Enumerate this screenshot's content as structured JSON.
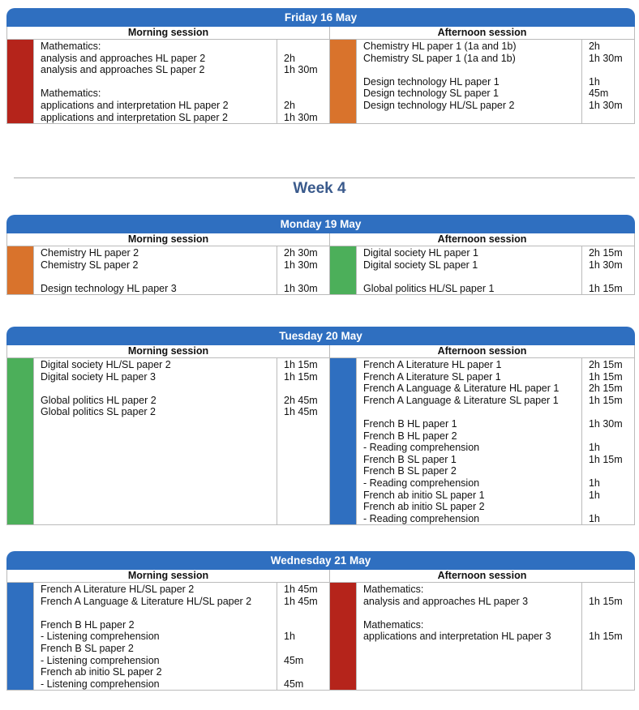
{
  "days": [
    {
      "title": "Friday 16 May",
      "sessions": [
        {
          "heading": "Morning session",
          "color": "#b5241b",
          "groups": [
            [
              {
                "subject": "Mathematics:"
              },
              {
                "subject": "analysis and approaches HL paper 2",
                "duration": "2h"
              },
              {
                "subject": "analysis and approaches SL paper 2",
                "duration": "1h 30m"
              }
            ],
            [
              {
                "subject": "Mathematics:"
              },
              {
                "subject": "applications and interpretation HL paper 2",
                "duration": "2h"
              },
              {
                "subject": "applications and interpretation SL paper 2",
                "duration": "1h 30m"
              }
            ]
          ]
        },
        {
          "heading": "Afternoon session",
          "color": "#d9732c",
          "groups": [
            [
              {
                "subject": "Chemistry HL paper 1 (1a and 1b)",
                "duration": "2h"
              },
              {
                "subject": "Chemistry SL paper 1 (1a and 1b)",
                "duration": "1h 30m"
              }
            ],
            [
              {
                "subject": "Design technology HL paper 1",
                "duration": "1h"
              },
              {
                "subject": "Design technology SL paper 1",
                "duration": "45m"
              },
              {
                "subject": "Design technology HL/SL paper 2",
                "duration": "1h 30m"
              }
            ]
          ]
        }
      ]
    },
    {
      "title": "Monday 19 May",
      "sessions": [
        {
          "heading": "Morning session",
          "color": "#d9732c",
          "groups": [
            [
              {
                "subject": "Chemistry HL paper 2",
                "duration": "2h 30m"
              },
              {
                "subject": "Chemistry SL paper 2",
                "duration": "1h 30m"
              }
            ],
            [
              {
                "subject": "Design technology HL paper 3",
                "duration": "1h 30m"
              }
            ]
          ]
        },
        {
          "heading": "Afternoon session",
          "color": "#4caf5a",
          "groups": [
            [
              {
                "subject": "Digital society HL paper 1",
                "duration": "2h 15m"
              },
              {
                "subject": "Digital society SL paper 1",
                "duration": "1h 30m"
              }
            ],
            [
              {
                "subject": "Global politics HL/SL paper 1",
                "duration": "1h 15m"
              }
            ]
          ]
        }
      ]
    },
    {
      "title": "Tuesday 20 May",
      "sessions": [
        {
          "heading": "Morning session",
          "color": "#4caf5a",
          "groups": [
            [
              {
                "subject": "Digital society HL/SL paper 2",
                "duration": "1h 15m"
              },
              {
                "subject": "Digital society HL paper 3",
                "duration": "1h 15m"
              }
            ],
            [
              {
                "subject": "Global politics HL paper 2",
                "duration": "2h 45m"
              },
              {
                "subject": "Global politics SL paper 2",
                "duration": "1h 45m"
              }
            ]
          ]
        },
        {
          "heading": "Afternoon session",
          "color": "#2f6fc0",
          "groups": [
            [
              {
                "subject": "French A Literature HL paper 1",
                "duration": "2h 15m"
              },
              {
                "subject": "French A Literature SL paper 1",
                "duration": "1h 15m"
              },
              {
                "subject": "French A Language & Literature HL paper 1",
                "duration": "2h 15m"
              },
              {
                "subject": "French A Language & Literature SL paper 1",
                "duration": "1h 15m"
              }
            ],
            [
              {
                "subject": "French B HL paper 1",
                "duration": "1h 30m"
              },
              {
                "subject": "French B HL paper 2"
              },
              {
                "subject": "- Reading comprehension",
                "duration": "1h"
              },
              {
                "subject": "French B SL paper 1",
                "duration": "1h 15m"
              },
              {
                "subject": "French B SL paper 2"
              },
              {
                "subject": "- Reading comprehension",
                "duration": "1h"
              },
              {
                "subject": "French ab initio SL paper 1",
                "duration": "1h"
              },
              {
                "subject": "French ab initio SL paper 2"
              },
              {
                "subject": "- Reading comprehension",
                "duration": "1h"
              }
            ]
          ]
        }
      ]
    },
    {
      "title": "Wednesday 21 May",
      "sessions": [
        {
          "heading": "Morning session",
          "color": "#2f6fc0",
          "groups": [
            [
              {
                "subject": "French A Literature HL/SL paper 2",
                "duration": "1h 45m"
              },
              {
                "subject": "French A Language & Literature HL/SL paper 2",
                "duration": "1h 45m"
              }
            ],
            [
              {
                "subject": "French B HL paper 2"
              },
              {
                "subject": "- Listening comprehension",
                "duration": "1h"
              },
              {
                "subject": "French B SL paper 2"
              },
              {
                "subject": "- Listening comprehension",
                "duration": "45m"
              },
              {
                "subject": "French ab initio SL paper 2"
              },
              {
                "subject": "- Listening comprehension",
                "duration": "45m"
              }
            ]
          ]
        },
        {
          "heading": "Afternoon session",
          "color": "#b5241b",
          "groups": [
            [
              {
                "subject": "Mathematics:"
              },
              {
                "subject": "analysis and approaches HL paper 3",
                "duration": "1h 15m"
              }
            ],
            [
              {
                "subject": "Mathematics:"
              },
              {
                "subject": "applications and interpretation HL paper 3",
                "duration": "1h 15m"
              }
            ]
          ]
        }
      ]
    }
  ],
  "week": "Week 4"
}
